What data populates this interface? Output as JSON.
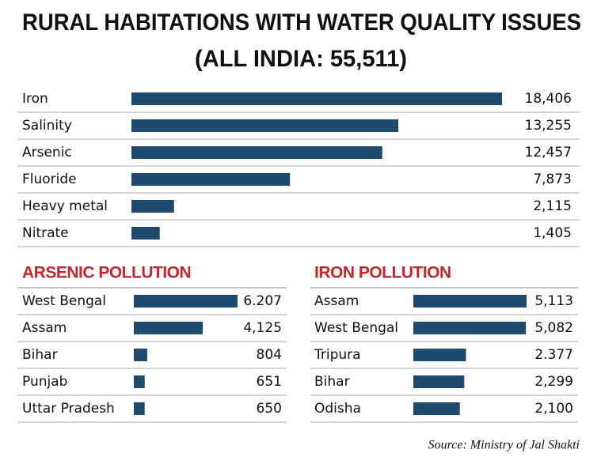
{
  "chart_data": [
    {
      "type": "bar",
      "title": "RURAL HABITATIONS WITH WATER QUALITY ISSUES",
      "subtitle": "(ALL INDIA: 55,511)",
      "categories": [
        "Iron",
        "Salinity",
        "Arsenic",
        "Fluoride",
        "Heavy metal",
        "Nitrate"
      ],
      "values": [
        18406,
        13255,
        12457,
        7873,
        2115,
        1405
      ],
      "value_labels": [
        "18,406",
        "13,255",
        "12,457",
        "7,873",
        "2,115",
        "1,405"
      ],
      "color": "#1d4a6e"
    },
    {
      "type": "bar",
      "title": "ARSENIC POLLUTION",
      "categories": [
        "West Bengal",
        "Assam",
        "Bihar",
        "Punjab",
        "Uttar Pradesh"
      ],
      "values": [
        6207,
        4125,
        804,
        651,
        650
      ],
      "value_labels": [
        "6.207",
        "4,125",
        "804",
        "651",
        "650"
      ],
      "color": "#1d4a6e",
      "title_color": "#c0282d"
    },
    {
      "type": "bar",
      "title": "IRON POLLUTION",
      "categories": [
        "Assam",
        "West Bengal",
        "Tripura",
        "Bihar",
        "Odisha"
      ],
      "values": [
        5113,
        5082,
        2377,
        2299,
        2100
      ],
      "value_labels": [
        "5,113",
        "5,082",
        "2.377",
        "2,299",
        "2,100"
      ],
      "color": "#1d4a6e",
      "title_color": "#c0282d"
    }
  ],
  "source": "Source: Ministry of Jal Shakti"
}
